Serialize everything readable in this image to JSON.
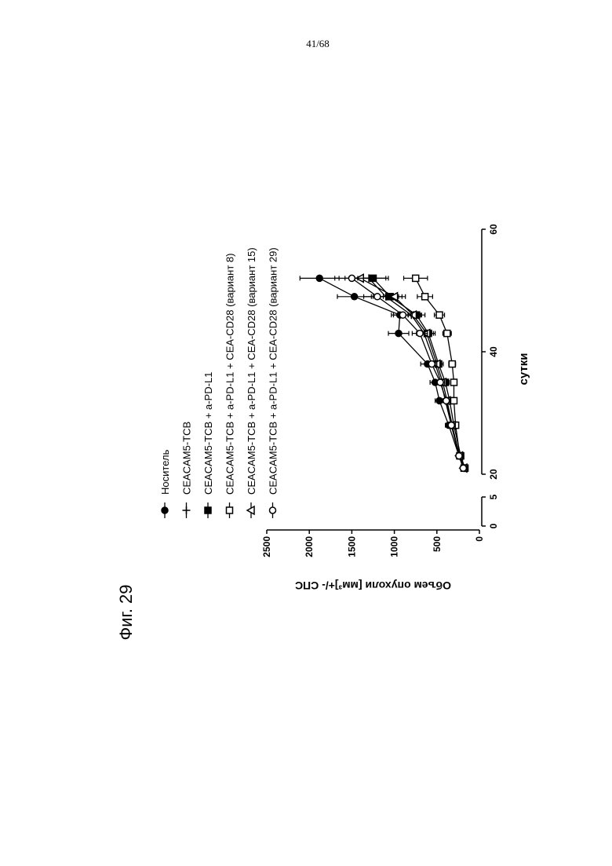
{
  "page_number": "41/68",
  "figure_label": "Фиг. 29",
  "chart_data": {
    "type": "line",
    "y_label": "Объем опухоли [мм³]+/- СПС",
    "x_label": "сутки",
    "x": [
      21,
      23,
      28,
      32,
      35,
      38,
      43,
      46,
      49,
      52
    ],
    "x_segments": [
      {
        "xlim": [
          0,
          5
        ],
        "xticks": [
          0,
          5
        ]
      },
      {
        "xlim": [
          20,
          60
        ],
        "xticks": [
          20,
          40,
          60
        ]
      }
    ],
    "ylim": [
      0,
      2500
    ],
    "yticks": [
      0,
      500,
      1000,
      1500,
      2000,
      2500
    ],
    "series": [
      {
        "name": "Носитель",
        "color": "#000000",
        "marker": "filled-circle",
        "values": [
          190,
          240,
          360,
          470,
          520,
          610,
          950,
          935,
          1470,
          1880
        ],
        "errors": [
          20,
          30,
          40,
          50,
          60,
          80,
          120,
          100,
          200,
          230
        ]
      },
      {
        "name": "CEACAM5-TCB",
        "color": "#000000",
        "marker": "plus",
        "values": [
          180,
          230,
          330,
          400,
          450,
          520,
          650,
          800,
          1100,
          1300
        ],
        "errors": [
          20,
          25,
          35,
          45,
          50,
          60,
          90,
          110,
          150,
          200
        ]
      },
      {
        "name": "CEACAM5-TCB + a-PD-L1",
        "color": "#000000",
        "marker": "filled-square",
        "values": [
          170,
          220,
          300,
          350,
          400,
          480,
          600,
          740,
          1050,
          1250
        ],
        "errors": [
          20,
          25,
          30,
          40,
          45,
          55,
          80,
          100,
          140,
          180
        ]
      },
      {
        "name": "CEACAM5-TCB + a-PD-L1 + CEA-CD28 (вариант 8)",
        "color": "#000000",
        "marker": "open-square",
        "values": [
          180,
          230,
          280,
          300,
          300,
          320,
          380,
          470,
          640,
          750
        ],
        "errors": [
          20,
          25,
          30,
          35,
          35,
          40,
          50,
          60,
          90,
          140
        ]
      },
      {
        "name": "CEACAM5-TCB + a-PD-L1 + CEA-CD28 (вариант 15)",
        "color": "#000000",
        "marker": "open-triangle",
        "values": [
          185,
          235,
          320,
          380,
          430,
          500,
          620,
          780,
          1000,
          1400
        ],
        "errors": [
          20,
          25,
          35,
          40,
          45,
          55,
          80,
          100,
          130,
          180
        ]
      },
      {
        "name": "CEACAM5-TCB + a-PD-L1 + CEA-CD28 (вариант 29)",
        "color": "#000000",
        "marker": "open-circle",
        "values": [
          190,
          240,
          330,
          390,
          460,
          560,
          700,
          900,
          1200,
          1500
        ],
        "errors": [
          20,
          25,
          35,
          40,
          50,
          60,
          90,
          110,
          160,
          200
        ]
      }
    ]
  }
}
